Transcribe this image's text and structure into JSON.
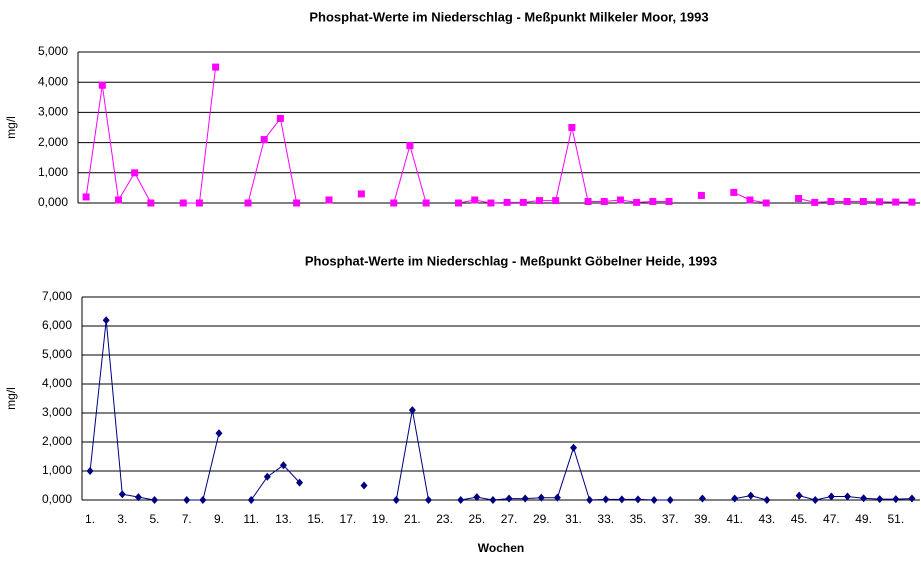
{
  "chart_data": [
    {
      "type": "line",
      "title": "Phosphat-Werte im Niederschlag - Meßpunkt Milkeler Moor, 1993",
      "y_label": "mg/l",
      "series": [
        {
          "color": "#ff00ff",
          "marker": "square",
          "values": [
            0.2,
            3.9,
            0.1,
            1.0,
            0,
            null,
            0,
            0,
            4.5,
            null,
            0,
            2.1,
            2.8,
            0,
            null,
            0.1,
            null,
            0.3,
            null,
            0,
            1.9,
            0,
            null,
            0,
            0.1,
            0,
            0.02,
            0.02,
            0.08,
            0.08,
            2.5,
            0.05,
            0.05,
            0.1,
            0.02,
            0.05,
            0.05,
            null,
            0.25,
            null,
            0.35,
            0.1,
            0,
            null,
            0.15,
            0.02,
            0.05,
            0.05,
            0.05,
            0.04,
            0.03,
            0.03
          ]
        }
      ],
      "ylim": [
        0,
        5
      ],
      "yticks": [
        {
          "value": 0,
          "label": "0,000"
        },
        {
          "value": 1,
          "label": "1,000"
        },
        {
          "value": 2,
          "label": "2,000"
        },
        {
          "value": 3,
          "label": "3,000"
        },
        {
          "value": 4,
          "label": "4,000"
        },
        {
          "value": 5,
          "label": "5,000"
        }
      ],
      "grid": true
    },
    {
      "type": "line",
      "title": "Phosphat-Werte im Niederschlag - Meßpunkt Göbelner Heide, 1993",
      "y_label": "mg/l",
      "x_label": "Wochen",
      "categories": [
        "1.",
        null,
        "3.",
        null,
        "5.",
        null,
        "7.",
        null,
        "9.",
        null,
        "11.",
        null,
        "13.",
        null,
        "15.",
        null,
        "17.",
        null,
        "19.",
        null,
        "21.",
        null,
        "23.",
        null,
        "25.",
        null,
        "27.",
        null,
        "29.",
        null,
        "31.",
        null,
        "33.",
        null,
        "35.",
        null,
        "37.",
        null,
        "39.",
        null,
        "41.",
        null,
        "43.",
        null,
        "45.",
        null,
        "47.",
        null,
        "49.",
        null,
        "51.",
        null
      ],
      "series": [
        {
          "color": "#000080",
          "marker": "diamond",
          "values": [
            1.0,
            6.2,
            0.2,
            0.1,
            0,
            null,
            0,
            0,
            2.3,
            null,
            0,
            0.8,
            1.2,
            0.6,
            null,
            null,
            null,
            0.5,
            null,
            0,
            3.1,
            0,
            null,
            0,
            0.1,
            0,
            0.05,
            0.05,
            0.08,
            0.08,
            1.8,
            0,
            0.02,
            0.02,
            0.02,
            0,
            0,
            null,
            0.05,
            null,
            0.05,
            0.15,
            0,
            null,
            0.15,
            0,
            0.12,
            0.12,
            0.06,
            0.03,
            0.03,
            0.05
          ]
        }
      ],
      "ylim": [
        0,
        7
      ],
      "yticks": [
        {
          "value": 0,
          "label": "0,000"
        },
        {
          "value": 1,
          "label": "1,000"
        },
        {
          "value": 2,
          "label": "2,000"
        },
        {
          "value": 3,
          "label": "3,000"
        },
        {
          "value": 4,
          "label": "4,000"
        },
        {
          "value": 5,
          "label": "5,000"
        },
        {
          "value": 6,
          "label": "6,000"
        },
        {
          "value": 7,
          "label": "7,000"
        }
      ],
      "grid": true
    }
  ]
}
